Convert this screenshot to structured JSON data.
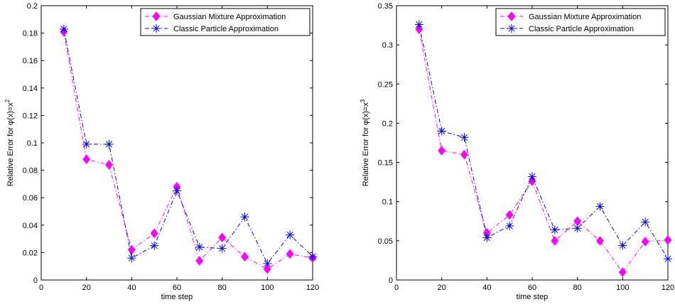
{
  "chart_data": [
    {
      "type": "line",
      "xlabel": "time step",
      "ylabel_main": "Relative Error for ",
      "ylabel_func": "φ(x)=x",
      "ylabel_sup": "2",
      "xlim": [
        0,
        120
      ],
      "ylim": [
        0,
        0.2
      ],
      "xticks": [
        "0",
        "20",
        "40",
        "60",
        "80",
        "100",
        "120"
      ],
      "yticks": [
        "0",
        "0.02",
        "0.04",
        "0.06",
        "0.08",
        "0.1",
        "0.12",
        "0.14",
        "0.16",
        "0.18",
        "0.2"
      ],
      "legend_position": "top-right",
      "x": [
        10,
        20,
        30,
        40,
        50,
        60,
        70,
        80,
        90,
        100,
        110,
        120
      ],
      "series": [
        {
          "name": "Gaussian Mixture Approximation",
          "color": "#ff00ff",
          "marker": "diamond",
          "line_style": "dash-dot",
          "values": [
            0.181,
            0.088,
            0.084,
            0.022,
            0.034,
            0.068,
            0.014,
            0.031,
            0.017,
            0.008,
            0.019,
            0.016
          ]
        },
        {
          "name": "Classic Particle Approximation",
          "color": "#0000ff",
          "marker": "asterisk",
          "line_style": "dash-dot",
          "values": [
            0.183,
            0.099,
            0.099,
            0.016,
            0.025,
            0.065,
            0.024,
            0.023,
            0.046,
            0.012,
            0.033,
            0.017
          ]
        }
      ]
    },
    {
      "type": "line",
      "xlabel": "time step",
      "ylabel_main": "Relative Error for ",
      "ylabel_func": "φ(x)=x",
      "ylabel_sup": "3",
      "xlim": [
        0,
        120
      ],
      "ylim": [
        0,
        0.35
      ],
      "xticks": [
        "0",
        "20",
        "40",
        "60",
        "80",
        "100",
        "120"
      ],
      "yticks": [
        "0",
        "0.05",
        "0.1",
        "0.15",
        "0.2",
        "0.25",
        "0.3",
        "0.35"
      ],
      "legend_position": "top-right",
      "x": [
        10,
        20,
        30,
        40,
        50,
        60,
        70,
        80,
        90,
        100,
        110,
        120
      ],
      "series": [
        {
          "name": "Gaussian Mixture Approximation",
          "color": "#ff00ff",
          "marker": "diamond",
          "line_style": "dash-dot",
          "values": [
            0.32,
            0.165,
            0.16,
            0.06,
            0.083,
            0.126,
            0.05,
            0.075,
            0.05,
            0.01,
            0.049,
            0.051
          ]
        },
        {
          "name": "Classic Particle Approximation",
          "color": "#0000ff",
          "marker": "asterisk",
          "line_style": "dash-dot",
          "values": [
            0.326,
            0.19,
            0.182,
            0.054,
            0.069,
            0.132,
            0.064,
            0.066,
            0.094,
            0.044,
            0.074,
            0.027
          ]
        }
      ]
    }
  ]
}
